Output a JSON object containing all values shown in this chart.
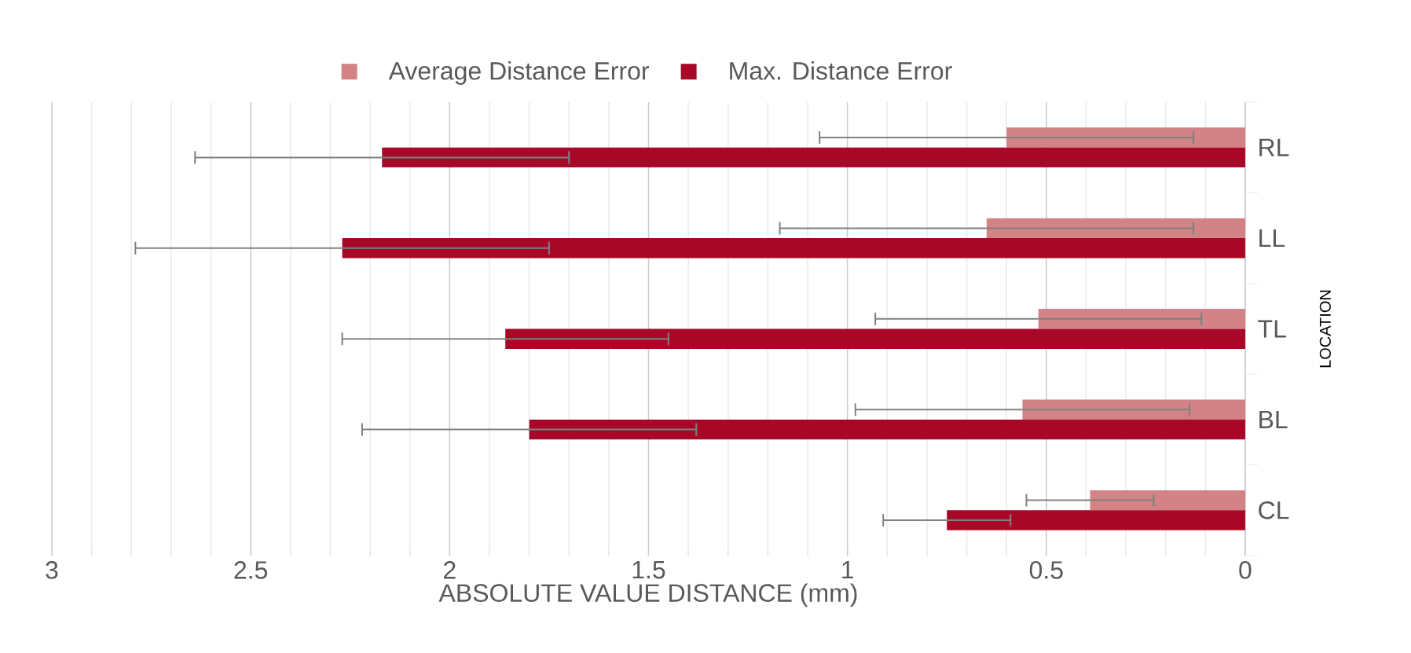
{
  "chart_data": {
    "type": "bar",
    "orientation": "horizontal",
    "xlabel": "ABSOLUTE VALUE DISTANCE (mm)",
    "ylabel": "LOCATION",
    "categories": [
      "RL",
      "LL",
      "TL",
      "BL",
      "CL"
    ],
    "series": [
      {
        "name": "Average Distance Error",
        "color": "#d38286",
        "values": [
          0.6,
          0.65,
          0.52,
          0.56,
          0.39
        ],
        "errors": [
          0.47,
          0.52,
          0.41,
          0.42,
          0.16
        ]
      },
      {
        "name": "Max. Distance Error",
        "color": "#a80828",
        "values": [
          2.17,
          2.27,
          1.86,
          1.8,
          0.75
        ],
        "errors": [
          0.47,
          0.52,
          0.41,
          0.42,
          0.16
        ]
      }
    ],
    "xlim": [
      3,
      0
    ],
    "xticks": [
      3,
      2.5,
      2,
      1.5,
      1,
      0.5,
      0
    ],
    "grid": "x",
    "legend": "top"
  }
}
